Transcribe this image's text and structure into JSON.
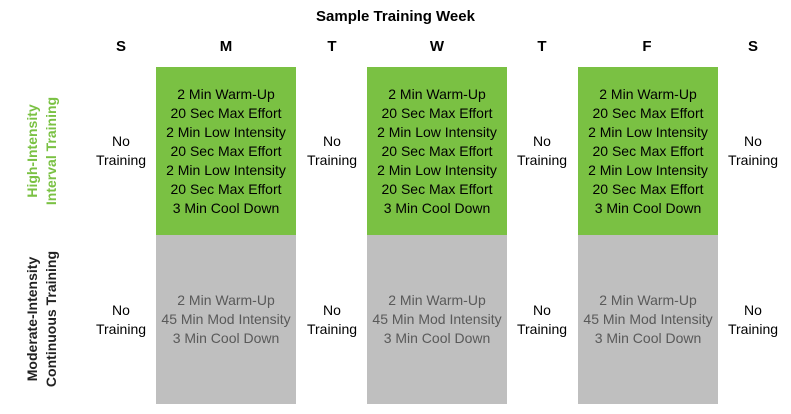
{
  "title": "Sample Training Week",
  "days": [
    "S",
    "M",
    "T",
    "W",
    "T",
    "F",
    "S"
  ],
  "colors": {
    "hiit_fill": "#7ac143",
    "hiit_label": "#7ac143",
    "micT_fill": "#bfbfbf",
    "micT_label": "#222222",
    "micT_text": "#595959"
  },
  "rows": [
    {
      "label_lines": [
        "High-Intensity",
        "Interval Training"
      ],
      "no_training": [
        "No",
        "Training"
      ],
      "session": [
        "2 Min Warm-Up",
        "20 Sec Max Effort",
        "2 Min Low Intensity",
        "20 Sec Max Effort",
        "2 Min Low Intensity",
        "20 Sec Max Effort",
        "3 Min Cool Down"
      ]
    },
    {
      "label_lines": [
        "Moderate-Intensity",
        "Continuous Training"
      ],
      "no_training": [
        "No",
        "Training"
      ],
      "session": [
        "2 Min Warm-Up",
        "45 Min Mod Intensity",
        "3 Min Cool Down"
      ]
    }
  ]
}
